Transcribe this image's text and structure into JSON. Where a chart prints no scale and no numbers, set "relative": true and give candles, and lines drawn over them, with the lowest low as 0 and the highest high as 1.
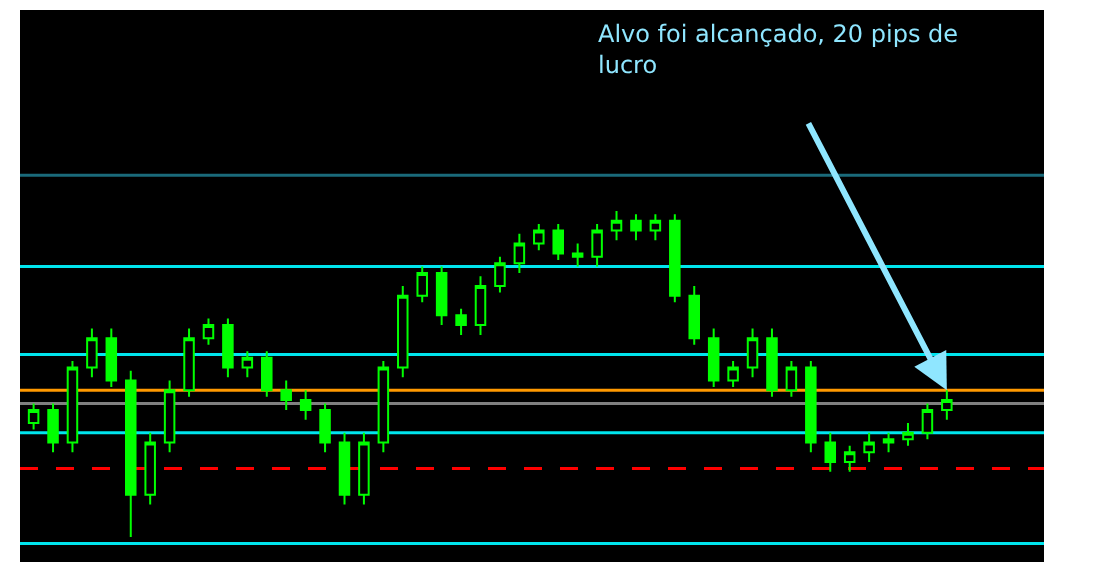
{
  "chart_data": {
    "type": "candlestick",
    "relative": true,
    "color": "#00ff00",
    "categories": [
      null,
      null,
      null,
      null,
      null,
      null,
      null,
      null,
      null,
      null,
      null,
      null,
      null,
      null,
      null,
      null,
      null,
      null,
      null,
      null,
      null,
      null,
      null,
      null,
      null,
      null,
      null,
      null,
      null,
      null,
      null,
      null,
      null,
      null,
      null,
      null,
      null,
      null,
      null,
      null,
      null,
      null,
      null,
      null,
      null,
      null,
      null,
      null
    ],
    "ohlc": [
      [
        0.35,
        0.41,
        0.33,
        0.39
      ],
      [
        0.39,
        0.41,
        0.26,
        0.29
      ],
      [
        0.29,
        0.54,
        0.26,
        0.52
      ],
      [
        0.52,
        0.64,
        0.49,
        0.61
      ],
      [
        0.61,
        0.64,
        0.46,
        0.48
      ],
      [
        0.48,
        0.51,
        0,
        0.13
      ],
      [
        0.13,
        0.32,
        0.1,
        0.29
      ],
      [
        0.29,
        0.48,
        0.26,
        0.45
      ],
      [
        0.45,
        0.64,
        0.43,
        0.61
      ],
      [
        0.61,
        0.67,
        0.59,
        0.65
      ],
      [
        0.65,
        0.67,
        0.49,
        0.52
      ],
      [
        0.52,
        0.57,
        0.49,
        0.55
      ],
      [
        0.55,
        0.57,
        0.43,
        0.45
      ],
      [
        0.45,
        0.48,
        0.39,
        0.42
      ],
      [
        0.42,
        0.45,
        0.36,
        0.39
      ],
      [
        0.39,
        0.41,
        0.26,
        0.29
      ],
      [
        0.29,
        0.32,
        0.1,
        0.13
      ],
      [
        0.13,
        0.32,
        0.1,
        0.29
      ],
      [
        0.29,
        0.54,
        0.26,
        0.52
      ],
      [
        0.52,
        0.77,
        0.49,
        0.74
      ],
      [
        0.74,
        0.83,
        0.72,
        0.81
      ],
      [
        0.81,
        0.83,
        0.65,
        0.68
      ],
      [
        0.68,
        0.7,
        0.62,
        0.65
      ],
      [
        0.65,
        0.8,
        0.62,
        0.77
      ],
      [
        0.77,
        0.86,
        0.75,
        0.84
      ],
      [
        0.84,
        0.93,
        0.81,
        0.9
      ],
      [
        0.9,
        0.96,
        0.88,
        0.94
      ],
      [
        0.94,
        0.96,
        0.85,
        0.87
      ],
      [
        0.87,
        0.9,
        0.83,
        0.86
      ],
      [
        0.86,
        0.96,
        0.83,
        0.94
      ],
      [
        0.94,
        1.0,
        0.91,
        0.97
      ],
      [
        0.97,
        0.99,
        0.91,
        0.94
      ],
      [
        0.94,
        0.99,
        0.91,
        0.97
      ],
      [
        0.97,
        0.99,
        0.72,
        0.74
      ],
      [
        0.74,
        0.77,
        0.59,
        0.61
      ],
      [
        0.61,
        0.64,
        0.46,
        0.48
      ],
      [
        0.48,
        0.54,
        0.46,
        0.52
      ],
      [
        0.52,
        0.64,
        0.49,
        0.61
      ],
      [
        0.61,
        0.64,
        0.43,
        0.45
      ],
      [
        0.45,
        0.54,
        0.43,
        0.52
      ],
      [
        0.52,
        0.54,
        0.26,
        0.29
      ],
      [
        0.29,
        0.32,
        0.2,
        0.23
      ],
      [
        0.23,
        0.28,
        0.2,
        0.26
      ],
      [
        0.26,
        0.32,
        0.23,
        0.29
      ],
      [
        0.29,
        0.32,
        0.26,
        0.3
      ],
      [
        0.3,
        0.35,
        0.28,
        0.32
      ],
      [
        0.32,
        0.41,
        0.3,
        0.39
      ],
      [
        0.39,
        0.45,
        0.36,
        0.42
      ]
    ],
    "ref_lines": [
      {
        "axis": "y",
        "value": 1.11,
        "color": "#1a6a7a"
      },
      {
        "axis": "y",
        "value": 0.83,
        "color": "#00e5ee"
      },
      {
        "axis": "y",
        "value": 0.56,
        "color": "#00e5ee"
      },
      {
        "axis": "y",
        "value": 0.45,
        "color": "#ff9900"
      },
      {
        "axis": "y",
        "value": 0.41,
        "color": "#808080"
      },
      {
        "axis": "y",
        "value": 0.32,
        "color": "#00e5ee"
      },
      {
        "axis": "y",
        "value": 0.21,
        "color": "#ff0000",
        "line_style": "dashed"
      },
      {
        "axis": "y",
        "value": -0.02,
        "color": "#00e5ee"
      }
    ],
    "annotations": [
      "Alvo foi alcançado, 20 pips de lucro"
    ]
  }
}
